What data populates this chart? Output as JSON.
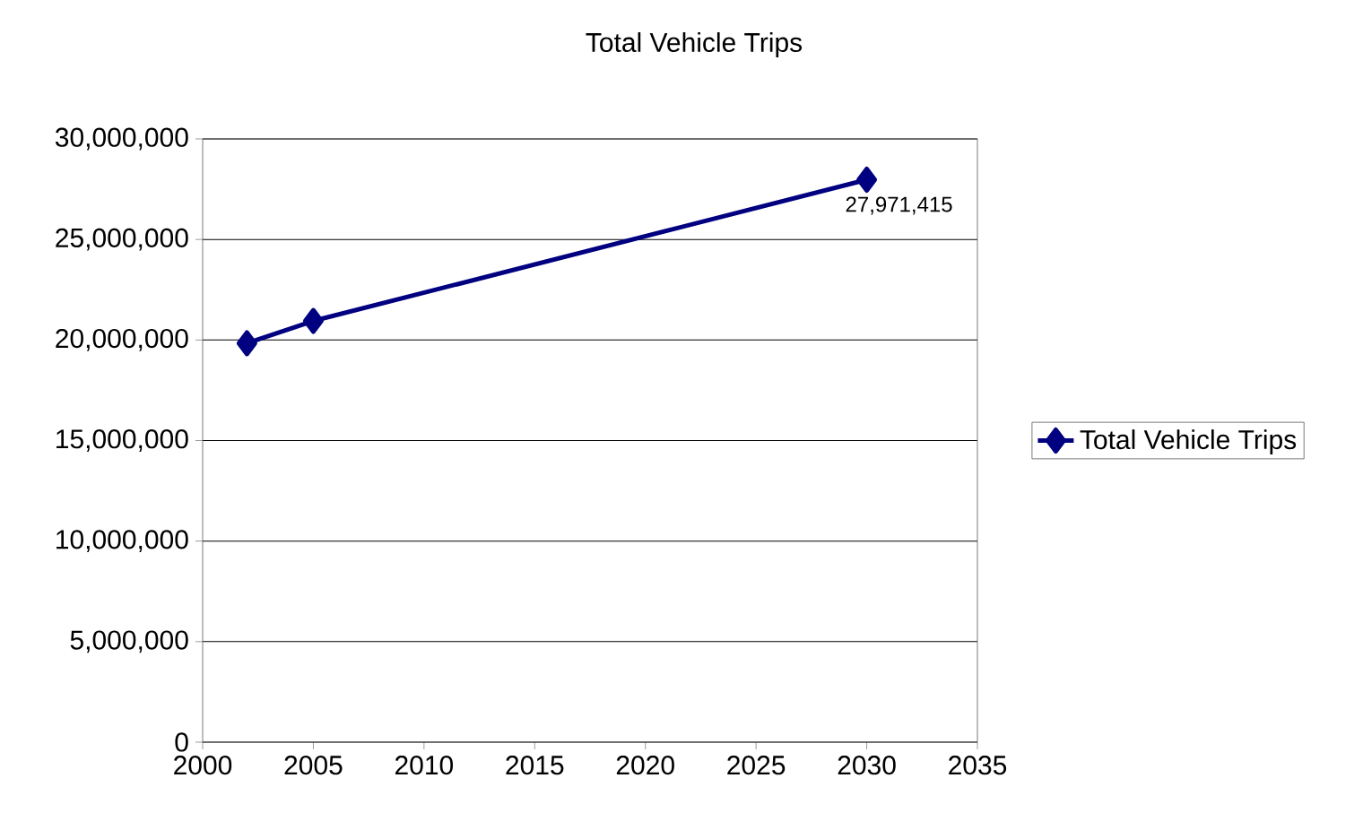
{
  "chart_data": {
    "type": "line",
    "title": "Total Vehicle Trips",
    "x": [
      2002,
      2005,
      2030
    ],
    "series": [
      {
        "name": "Total Vehicle Trips",
        "color": "#000080",
        "values": [
          19840000,
          20950000,
          27971415
        ],
        "value_labels": [
          null,
          null,
          "27,971,415"
        ]
      }
    ],
    "xlim": [
      2000,
      2035
    ],
    "xticks": [
      2000,
      2005,
      2010,
      2015,
      2020,
      2025,
      2030,
      2035
    ],
    "ylim": [
      0,
      30000000
    ],
    "yticks": [
      {
        "value": 0,
        "label": "0"
      },
      {
        "value": 5000000,
        "label": "5,000,000"
      },
      {
        "value": 10000000,
        "label": "10,000,000"
      },
      {
        "value": 15000000,
        "label": "15,000,000"
      },
      {
        "value": 20000000,
        "label": "20,000,000"
      },
      {
        "value": 25000000,
        "label": "25,000,000"
      },
      {
        "value": 30000000,
        "label": "30,000,000"
      }
    ],
    "grid": "y",
    "legend": "right",
    "marker": "diamond",
    "line_style": "solid"
  }
}
